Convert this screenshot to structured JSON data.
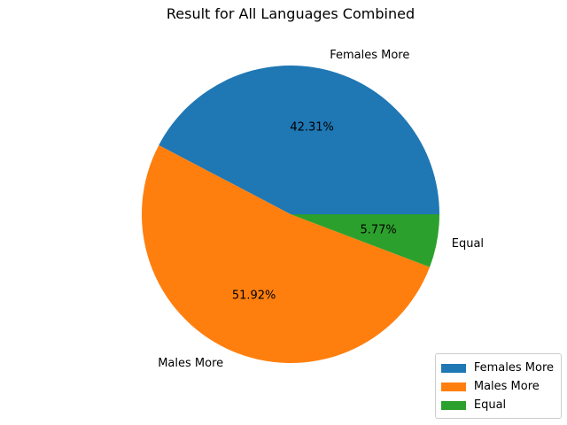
{
  "chart_data": {
    "type": "pie",
    "title": "Result for All Languages Combined",
    "categories": [
      "Females More",
      "Males More",
      "Equal"
    ],
    "values": [
      42.31,
      51.92,
      5.77
    ],
    "labels": [
      "42.31%",
      "51.92%",
      "5.77%"
    ],
    "colors": [
      "#1f77b4",
      "#ff7f0e",
      "#2ca02c"
    ],
    "legend": {
      "placement": "lower-right",
      "entries": [
        "Females More",
        "Males More",
        "Equal"
      ]
    }
  }
}
